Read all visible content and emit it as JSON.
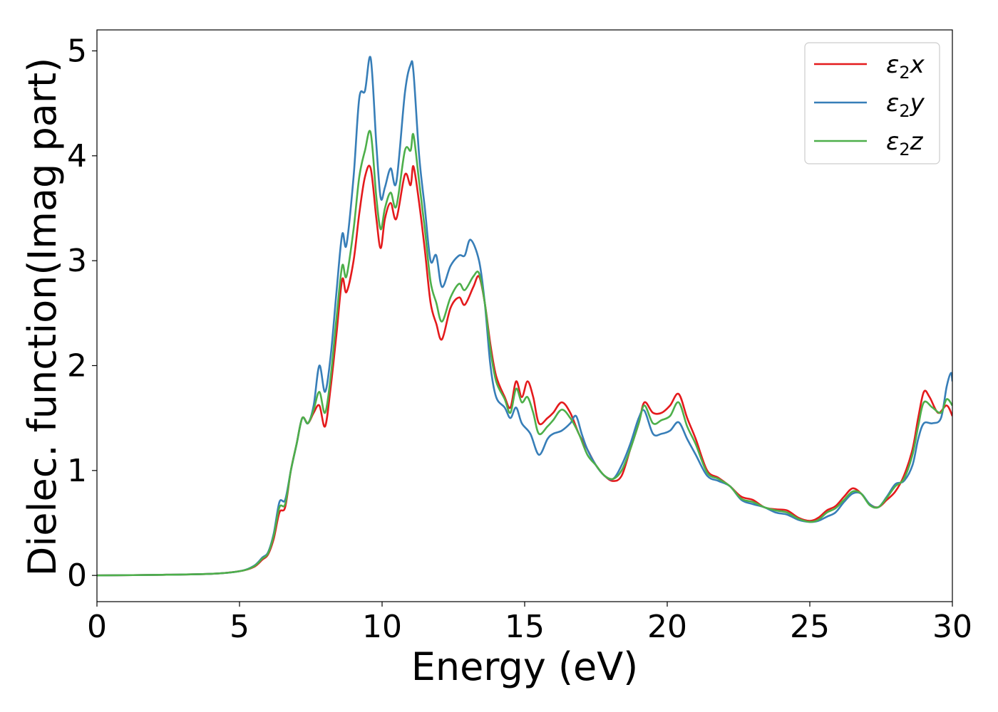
{
  "chart_data": {
    "type": "line",
    "xlabel": "Energy (eV)",
    "ylabel": "Dielec. function(Imag part)",
    "xlim": [
      0,
      30
    ],
    "ylim": [
      -0.25,
      5.2
    ],
    "xticks": [
      "0",
      "5",
      "10",
      "15",
      "20",
      "25",
      "30"
    ],
    "yticks": [
      "0",
      "1",
      "2",
      "3",
      "4",
      "5"
    ],
    "grid": false,
    "legend_position": "top-right",
    "series": [
      {
        "name": "ε2x",
        "legend_base": "ε",
        "legend_sub": "2",
        "legend_var": "x",
        "color": "#e41a1c",
        "points": [
          [
            0,
            0.0
          ],
          [
            2,
            0.005
          ],
          [
            4,
            0.015
          ],
          [
            5,
            0.04
          ],
          [
            5.5,
            0.08
          ],
          [
            5.8,
            0.15
          ],
          [
            6.0,
            0.2
          ],
          [
            6.2,
            0.35
          ],
          [
            6.4,
            0.6
          ],
          [
            6.6,
            0.65
          ],
          [
            6.8,
            1.0
          ],
          [
            7.0,
            1.25
          ],
          [
            7.2,
            1.5
          ],
          [
            7.4,
            1.45
          ],
          [
            7.6,
            1.55
          ],
          [
            7.8,
            1.62
          ],
          [
            8.0,
            1.42
          ],
          [
            8.2,
            1.8
          ],
          [
            8.4,
            2.3
          ],
          [
            8.6,
            2.82
          ],
          [
            8.75,
            2.7
          ],
          [
            9.0,
            3.0
          ],
          [
            9.2,
            3.45
          ],
          [
            9.4,
            3.8
          ],
          [
            9.6,
            3.88
          ],
          [
            9.8,
            3.4
          ],
          [
            9.95,
            3.12
          ],
          [
            10.1,
            3.4
          ],
          [
            10.3,
            3.55
          ],
          [
            10.5,
            3.4
          ],
          [
            10.8,
            3.82
          ],
          [
            11.0,
            3.72
          ],
          [
            11.1,
            3.9
          ],
          [
            11.3,
            3.55
          ],
          [
            11.5,
            3.1
          ],
          [
            11.7,
            2.6
          ],
          [
            11.9,
            2.4
          ],
          [
            12.1,
            2.25
          ],
          [
            12.4,
            2.55
          ],
          [
            12.7,
            2.65
          ],
          [
            12.9,
            2.58
          ],
          [
            13.2,
            2.75
          ],
          [
            13.4,
            2.85
          ],
          [
            13.6,
            2.6
          ],
          [
            13.8,
            2.2
          ],
          [
            14.0,
            1.9
          ],
          [
            14.3,
            1.7
          ],
          [
            14.5,
            1.6
          ],
          [
            14.7,
            1.85
          ],
          [
            14.9,
            1.7
          ],
          [
            15.1,
            1.85
          ],
          [
            15.3,
            1.7
          ],
          [
            15.5,
            1.45
          ],
          [
            15.8,
            1.5
          ],
          [
            16.0,
            1.55
          ],
          [
            16.3,
            1.65
          ],
          [
            16.6,
            1.55
          ],
          [
            16.9,
            1.35
          ],
          [
            17.2,
            1.2
          ],
          [
            17.5,
            1.05
          ],
          [
            17.8,
            0.95
          ],
          [
            18.1,
            0.9
          ],
          [
            18.4,
            0.95
          ],
          [
            18.7,
            1.2
          ],
          [
            19.0,
            1.45
          ],
          [
            19.2,
            1.65
          ],
          [
            19.5,
            1.55
          ],
          [
            19.8,
            1.55
          ],
          [
            20.1,
            1.62
          ],
          [
            20.4,
            1.73
          ],
          [
            20.7,
            1.5
          ],
          [
            21.0,
            1.3
          ],
          [
            21.4,
            1.0
          ],
          [
            21.8,
            0.93
          ],
          [
            22.2,
            0.85
          ],
          [
            22.6,
            0.75
          ],
          [
            23.0,
            0.72
          ],
          [
            23.4,
            0.65
          ],
          [
            23.8,
            0.63
          ],
          [
            24.2,
            0.62
          ],
          [
            24.6,
            0.55
          ],
          [
            25.0,
            0.52
          ],
          [
            25.3,
            0.55
          ],
          [
            25.6,
            0.62
          ],
          [
            25.9,
            0.66
          ],
          [
            26.2,
            0.75
          ],
          [
            26.5,
            0.83
          ],
          [
            26.8,
            0.78
          ],
          [
            27.1,
            0.68
          ],
          [
            27.4,
            0.65
          ],
          [
            27.7,
            0.72
          ],
          [
            28.0,
            0.8
          ],
          [
            28.3,
            0.95
          ],
          [
            28.6,
            1.2
          ],
          [
            28.8,
            1.5
          ],
          [
            29.0,
            1.75
          ],
          [
            29.2,
            1.7
          ],
          [
            29.5,
            1.55
          ],
          [
            29.8,
            1.62
          ],
          [
            30.0,
            1.52
          ]
        ]
      },
      {
        "name": "ε2y",
        "legend_base": "ε",
        "legend_sub": "2",
        "legend_var": "y",
        "color": "#377eb8",
        "points": [
          [
            0,
            0.0
          ],
          [
            2,
            0.005
          ],
          [
            4,
            0.015
          ],
          [
            5,
            0.04
          ],
          [
            5.5,
            0.09
          ],
          [
            5.8,
            0.17
          ],
          [
            6.0,
            0.22
          ],
          [
            6.2,
            0.4
          ],
          [
            6.4,
            0.7
          ],
          [
            6.6,
            0.72
          ],
          [
            6.8,
            1.0
          ],
          [
            7.0,
            1.25
          ],
          [
            7.2,
            1.5
          ],
          [
            7.4,
            1.45
          ],
          [
            7.6,
            1.62
          ],
          [
            7.8,
            2.0
          ],
          [
            8.0,
            1.75
          ],
          [
            8.2,
            2.1
          ],
          [
            8.4,
            2.7
          ],
          [
            8.6,
            3.25
          ],
          [
            8.75,
            3.15
          ],
          [
            9.0,
            3.8
          ],
          [
            9.2,
            4.55
          ],
          [
            9.4,
            4.62
          ],
          [
            9.6,
            4.93
          ],
          [
            9.8,
            4.1
          ],
          [
            9.95,
            3.6
          ],
          [
            10.1,
            3.7
          ],
          [
            10.3,
            3.88
          ],
          [
            10.5,
            3.75
          ],
          [
            10.8,
            4.6
          ],
          [
            11.0,
            4.87
          ],
          [
            11.1,
            4.8
          ],
          [
            11.3,
            4.0
          ],
          [
            11.5,
            3.5
          ],
          [
            11.7,
            3.0
          ],
          [
            11.9,
            3.05
          ],
          [
            12.1,
            2.75
          ],
          [
            12.4,
            2.95
          ],
          [
            12.7,
            3.05
          ],
          [
            12.9,
            3.05
          ],
          [
            13.1,
            3.2
          ],
          [
            13.4,
            3.0
          ],
          [
            13.6,
            2.6
          ],
          [
            13.8,
            2.0
          ],
          [
            14.0,
            1.7
          ],
          [
            14.3,
            1.6
          ],
          [
            14.5,
            1.5
          ],
          [
            14.7,
            1.6
          ],
          [
            14.9,
            1.45
          ],
          [
            15.2,
            1.35
          ],
          [
            15.5,
            1.15
          ],
          [
            15.8,
            1.3
          ],
          [
            16.0,
            1.35
          ],
          [
            16.3,
            1.38
          ],
          [
            16.6,
            1.45
          ],
          [
            16.8,
            1.52
          ],
          [
            17.0,
            1.35
          ],
          [
            17.2,
            1.2
          ],
          [
            17.5,
            1.05
          ],
          [
            17.8,
            0.95
          ],
          [
            18.1,
            0.92
          ],
          [
            18.4,
            1.05
          ],
          [
            18.7,
            1.25
          ],
          [
            19.0,
            1.5
          ],
          [
            19.2,
            1.57
          ],
          [
            19.5,
            1.35
          ],
          [
            19.8,
            1.35
          ],
          [
            20.1,
            1.38
          ],
          [
            20.4,
            1.46
          ],
          [
            20.7,
            1.3
          ],
          [
            21.0,
            1.15
          ],
          [
            21.4,
            0.95
          ],
          [
            21.8,
            0.9
          ],
          [
            22.2,
            0.85
          ],
          [
            22.6,
            0.72
          ],
          [
            23.0,
            0.68
          ],
          [
            23.4,
            0.65
          ],
          [
            23.8,
            0.6
          ],
          [
            24.2,
            0.58
          ],
          [
            24.6,
            0.53
          ],
          [
            25.0,
            0.51
          ],
          [
            25.3,
            0.52
          ],
          [
            25.6,
            0.56
          ],
          [
            25.9,
            0.6
          ],
          [
            26.2,
            0.7
          ],
          [
            26.5,
            0.78
          ],
          [
            26.8,
            0.78
          ],
          [
            27.1,
            0.68
          ],
          [
            27.4,
            0.65
          ],
          [
            27.7,
            0.75
          ],
          [
            28.0,
            0.87
          ],
          [
            28.3,
            0.9
          ],
          [
            28.6,
            1.05
          ],
          [
            28.8,
            1.3
          ],
          [
            29.0,
            1.45
          ],
          [
            29.3,
            1.45
          ],
          [
            29.6,
            1.5
          ],
          [
            29.8,
            1.8
          ],
          [
            29.95,
            1.93
          ],
          [
            30.0,
            1.85
          ]
        ]
      },
      {
        "name": "ε2z",
        "legend_base": "ε",
        "legend_sub": "2",
        "legend_var": "z",
        "color": "#4daf4a",
        "points": [
          [
            0,
            0.0
          ],
          [
            2,
            0.005
          ],
          [
            4,
            0.015
          ],
          [
            5,
            0.04
          ],
          [
            5.5,
            0.085
          ],
          [
            5.8,
            0.16
          ],
          [
            6.0,
            0.21
          ],
          [
            6.2,
            0.38
          ],
          [
            6.4,
            0.65
          ],
          [
            6.6,
            0.68
          ],
          [
            6.8,
            1.0
          ],
          [
            7.0,
            1.25
          ],
          [
            7.2,
            1.5
          ],
          [
            7.4,
            1.45
          ],
          [
            7.6,
            1.58
          ],
          [
            7.8,
            1.75
          ],
          [
            8.0,
            1.55
          ],
          [
            8.2,
            1.9
          ],
          [
            8.4,
            2.45
          ],
          [
            8.6,
            2.95
          ],
          [
            8.75,
            2.85
          ],
          [
            9.0,
            3.3
          ],
          [
            9.2,
            3.8
          ],
          [
            9.4,
            4.05
          ],
          [
            9.6,
            4.22
          ],
          [
            9.8,
            3.6
          ],
          [
            9.95,
            3.3
          ],
          [
            10.1,
            3.5
          ],
          [
            10.3,
            3.65
          ],
          [
            10.5,
            3.52
          ],
          [
            10.8,
            4.05
          ],
          [
            11.0,
            4.05
          ],
          [
            11.1,
            4.2
          ],
          [
            11.3,
            3.75
          ],
          [
            11.5,
            3.3
          ],
          [
            11.7,
            2.8
          ],
          [
            11.9,
            2.6
          ],
          [
            12.1,
            2.42
          ],
          [
            12.4,
            2.65
          ],
          [
            12.7,
            2.78
          ],
          [
            12.9,
            2.72
          ],
          [
            13.2,
            2.85
          ],
          [
            13.4,
            2.88
          ],
          [
            13.6,
            2.6
          ],
          [
            13.8,
            2.15
          ],
          [
            14.0,
            1.85
          ],
          [
            14.3,
            1.68
          ],
          [
            14.5,
            1.55
          ],
          [
            14.7,
            1.78
          ],
          [
            14.9,
            1.65
          ],
          [
            15.1,
            1.7
          ],
          [
            15.3,
            1.55
          ],
          [
            15.5,
            1.35
          ],
          [
            15.8,
            1.42
          ],
          [
            16.0,
            1.48
          ],
          [
            16.3,
            1.58
          ],
          [
            16.6,
            1.5
          ],
          [
            16.9,
            1.35
          ],
          [
            17.2,
            1.15
          ],
          [
            17.5,
            1.05
          ],
          [
            17.8,
            0.95
          ],
          [
            18.1,
            0.92
          ],
          [
            18.4,
            1.0
          ],
          [
            18.7,
            1.2
          ],
          [
            19.0,
            1.45
          ],
          [
            19.2,
            1.62
          ],
          [
            19.5,
            1.45
          ],
          [
            19.8,
            1.48
          ],
          [
            20.1,
            1.52
          ],
          [
            20.4,
            1.65
          ],
          [
            20.7,
            1.42
          ],
          [
            21.0,
            1.25
          ],
          [
            21.4,
            0.98
          ],
          [
            21.8,
            0.92
          ],
          [
            22.2,
            0.85
          ],
          [
            22.6,
            0.73
          ],
          [
            23.0,
            0.7
          ],
          [
            23.4,
            0.65
          ],
          [
            23.8,
            0.62
          ],
          [
            24.2,
            0.6
          ],
          [
            24.6,
            0.54
          ],
          [
            25.0,
            0.51
          ],
          [
            25.3,
            0.53
          ],
          [
            25.6,
            0.6
          ],
          [
            25.9,
            0.64
          ],
          [
            26.2,
            0.72
          ],
          [
            26.5,
            0.8
          ],
          [
            26.8,
            0.78
          ],
          [
            27.1,
            0.67
          ],
          [
            27.4,
            0.65
          ],
          [
            27.7,
            0.74
          ],
          [
            28.0,
            0.85
          ],
          [
            28.3,
            0.92
          ],
          [
            28.6,
            1.15
          ],
          [
            28.8,
            1.42
          ],
          [
            29.0,
            1.65
          ],
          [
            29.3,
            1.6
          ],
          [
            29.6,
            1.55
          ],
          [
            29.8,
            1.68
          ],
          [
            30.0,
            1.62
          ]
        ]
      }
    ]
  }
}
